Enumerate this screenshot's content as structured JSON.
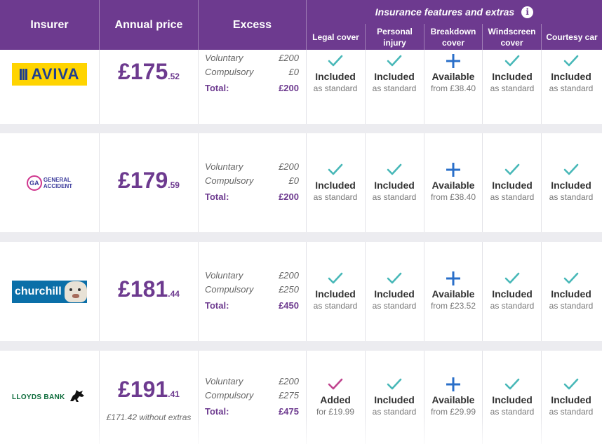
{
  "header": {
    "insurer": "Insurer",
    "annual_price": "Annual price",
    "excess": "Excess",
    "features_title": "Insurance features and extras",
    "info_icon": "i",
    "features": [
      "Legal cover",
      "Personal injury",
      "Breakdown cover",
      "Windscreen cover",
      "Courtesy car"
    ]
  },
  "colors": {
    "brand": "#6d3a8f",
    "check_teal": "#48b8b8",
    "check_pink": "#c0458f",
    "plus_blue": "#2a6fc9"
  },
  "rows": [
    {
      "insurer": "AVIVA",
      "logo": "aviva-logo",
      "price_main": "£175",
      "price_pence": ".52",
      "price_note": "",
      "excess": {
        "voluntary_label": "Voluntary",
        "voluntary": "£200",
        "compulsory_label": "Compulsory",
        "compulsory": "£0",
        "total_label": "Total:",
        "total": "£200"
      },
      "features": [
        {
          "icon": "check",
          "status": "Included",
          "sub": "as standard"
        },
        {
          "icon": "check",
          "status": "Included",
          "sub": "as standard"
        },
        {
          "icon": "plus",
          "status": "Available",
          "sub": "from £38.40"
        },
        {
          "icon": "check",
          "status": "Included",
          "sub": "as standard"
        },
        {
          "icon": "check",
          "status": "Included",
          "sub": "as standard"
        }
      ]
    },
    {
      "insurer": "GENERAL ACCIDENT",
      "logo_mark": "GA",
      "logo_line1": "GENERAL",
      "logo_line2": "ACCIDENT",
      "price_main": "£179",
      "price_pence": ".59",
      "price_note": "",
      "excess": {
        "voluntary_label": "Voluntary",
        "voluntary": "£200",
        "compulsory_label": "Compulsory",
        "compulsory": "£0",
        "total_label": "Total:",
        "total": "£200"
      },
      "features": [
        {
          "icon": "check",
          "status": "Included",
          "sub": "as standard"
        },
        {
          "icon": "check",
          "status": "Included",
          "sub": "as standard"
        },
        {
          "icon": "plus",
          "status": "Available",
          "sub": "from £38.40"
        },
        {
          "icon": "check",
          "status": "Included",
          "sub": "as standard"
        },
        {
          "icon": "check",
          "status": "Included",
          "sub": "as standard"
        }
      ]
    },
    {
      "insurer": "churchill",
      "price_main": "£181",
      "price_pence": ".44",
      "price_note": "",
      "excess": {
        "voluntary_label": "Voluntary",
        "voluntary": "£200",
        "compulsory_label": "Compulsory",
        "compulsory": "£250",
        "total_label": "Total:",
        "total": "£450"
      },
      "features": [
        {
          "icon": "check",
          "status": "Included",
          "sub": "as standard"
        },
        {
          "icon": "check",
          "status": "Included",
          "sub": "as standard"
        },
        {
          "icon": "plus",
          "status": "Available",
          "sub": "from £23.52"
        },
        {
          "icon": "check",
          "status": "Included",
          "sub": "as standard"
        },
        {
          "icon": "check",
          "status": "Included",
          "sub": "as standard"
        }
      ]
    },
    {
      "insurer": "LLOYDS BANK",
      "price_main": "£191",
      "price_pence": ".41",
      "price_note": "£171.42 without extras",
      "excess": {
        "voluntary_label": "Voluntary",
        "voluntary": "£200",
        "compulsory_label": "Compulsory",
        "compulsory": "£275",
        "total_label": "Total:",
        "total": "£475"
      },
      "features": [
        {
          "icon": "check-added",
          "status": "Added",
          "sub": "for £19.99"
        },
        {
          "icon": "check",
          "status": "Included",
          "sub": "as standard"
        },
        {
          "icon": "plus",
          "status": "Available",
          "sub": "from £29.99"
        },
        {
          "icon": "check",
          "status": "Included",
          "sub": "as standard"
        },
        {
          "icon": "check",
          "status": "Included",
          "sub": "as standard"
        }
      ]
    }
  ]
}
